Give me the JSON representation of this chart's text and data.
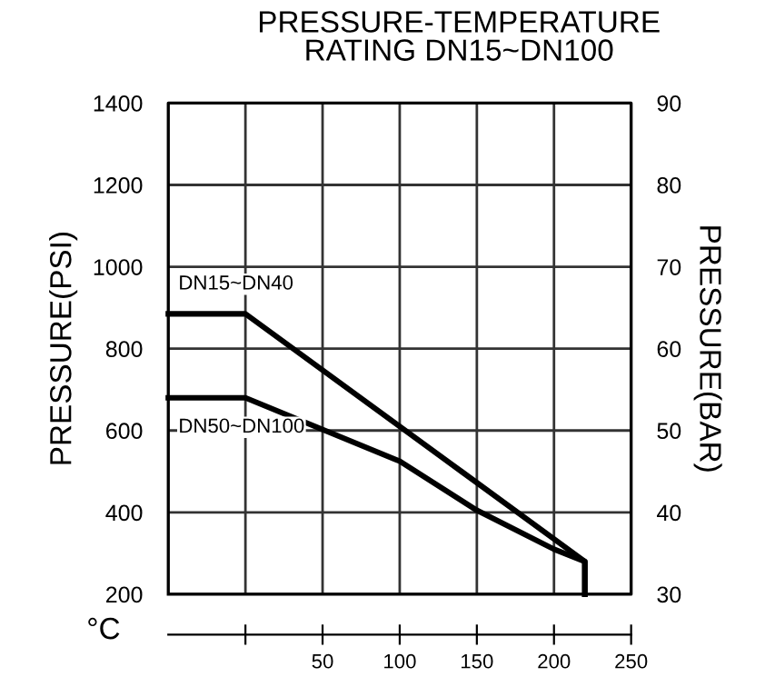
{
  "chart_data": {
    "type": "line",
    "title": "PRESSURE-TEMPERATURE\nRATING DN15~DN100",
    "xlabel": "°C",
    "ylabel": "PRESSURE(PSI)",
    "y2label": "PRESSURE(BAR)",
    "series": [
      {
        "name": "DN15~DN40",
        "color": "#000000",
        "x": [
          -50,
          0,
          220,
          220
        ],
        "values": [
          885,
          885,
          280,
          200
        ]
      },
      {
        "name": "DN50~DN100",
        "color": "#000000",
        "x": [
          -50,
          0,
          100,
          150,
          200,
          220,
          220
        ],
        "values": [
          680,
          680,
          525,
          405,
          310,
          280,
          200
        ]
      }
    ],
    "xlim": [
      -50,
      250
    ],
    "xticks": [
      {
        "value": 0,
        "label": null
      },
      50,
      100,
      150,
      200,
      250
    ],
    "ylim": [
      200,
      1400
    ],
    "yticks": [
      200,
      400,
      600,
      800,
      1000,
      1200,
      1400
    ],
    "y2lim": [
      30,
      90
    ],
    "y2ticks": [
      30,
      40,
      50,
      60,
      70,
      80,
      90
    ],
    "grid": true,
    "legend": false,
    "line_style": "solid",
    "marker": "none"
  }
}
